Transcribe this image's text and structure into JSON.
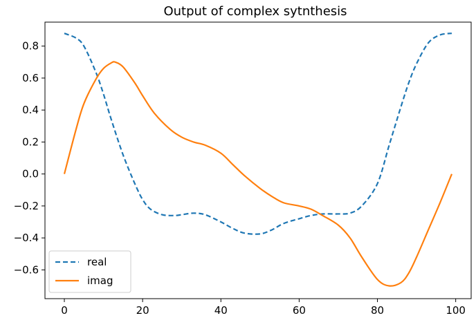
{
  "chart_data": {
    "type": "line",
    "title": "Output of complex sytnthesis",
    "xlabel": "",
    "ylabel": "",
    "xlim": [
      -4.95,
      103.95
    ],
    "ylim": [
      -0.78,
      0.95
    ],
    "xticks": [
      0,
      20,
      40,
      60,
      80,
      100
    ],
    "yticks": [
      0.8,
      0.6,
      0.4,
      0.2,
      0.0,
      -0.2,
      -0.4,
      -0.6
    ],
    "ytick_labels": [
      "0.8",
      "0.6",
      "0.4",
      "0.2",
      "0.0",
      "−0.2",
      "−0.4",
      "−0.6"
    ],
    "grid": false,
    "legend": "lower-left",
    "series": [
      {
        "name": "real",
        "color": "#1f77b4",
        "style": "dashed",
        "x": [
          0,
          3,
          5,
          8,
          10,
          12,
          15,
          18,
          20,
          22,
          25,
          28,
          30,
          33,
          36,
          40,
          43,
          46,
          50,
          53,
          56,
          60,
          63,
          66,
          70,
          73,
          76,
          80,
          83,
          86,
          88,
          90,
          93,
          96,
          99
        ],
        "y": [
          0.88,
          0.85,
          0.8,
          0.64,
          0.5,
          0.34,
          0.12,
          -0.06,
          -0.16,
          -0.22,
          -0.255,
          -0.26,
          -0.255,
          -0.245,
          -0.255,
          -0.3,
          -0.34,
          -0.37,
          -0.375,
          -0.35,
          -0.31,
          -0.28,
          -0.26,
          -0.25,
          -0.25,
          -0.245,
          -0.2,
          -0.06,
          0.18,
          0.42,
          0.57,
          0.69,
          0.82,
          0.87,
          0.88
        ]
      },
      {
        "name": "imag",
        "color": "#ff7f0e",
        "style": "solid",
        "x": [
          0,
          3,
          5,
          8,
          10,
          12,
          13,
          15,
          18,
          20,
          23,
          27,
          30,
          33,
          36,
          40,
          43,
          46,
          50,
          53,
          56,
          60,
          63,
          66,
          70,
          73,
          76,
          80,
          83,
          86,
          88,
          90,
          93,
          96,
          99
        ],
        "y": [
          0.0,
          0.28,
          0.44,
          0.59,
          0.66,
          0.695,
          0.7,
          0.67,
          0.57,
          0.49,
          0.38,
          0.28,
          0.23,
          0.2,
          0.18,
          0.13,
          0.06,
          -0.01,
          -0.09,
          -0.14,
          -0.18,
          -0.2,
          -0.22,
          -0.26,
          -0.32,
          -0.4,
          -0.52,
          -0.66,
          -0.7,
          -0.68,
          -0.62,
          -0.52,
          -0.35,
          -0.18,
          0.0
        ]
      }
    ]
  }
}
